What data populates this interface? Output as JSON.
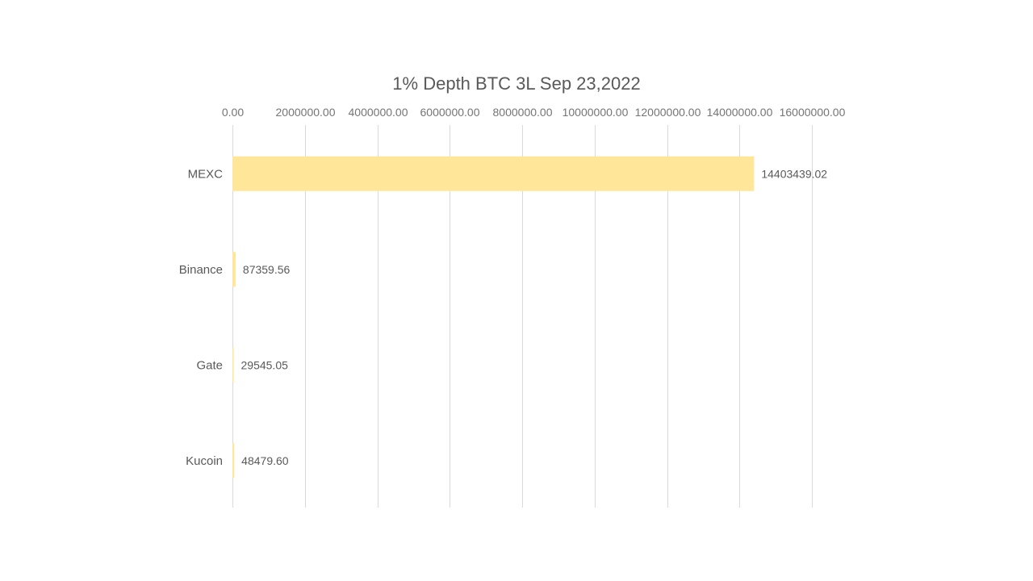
{
  "chart_data": {
    "type": "bar",
    "orientation": "horizontal",
    "title": "1% Depth BTC 3L Sep 23,2022",
    "xlabel": "",
    "ylabel": "",
    "categories": [
      "MEXC",
      "Binance",
      "Gate",
      "Kucoin"
    ],
    "values": [
      14403439.02,
      87359.56,
      29545.05,
      48479.6
    ],
    "value_labels": [
      "14403439.02",
      "87359.56",
      "29545.05",
      "48479.60"
    ],
    "xlim": [
      0,
      16000000
    ],
    "ticks": [
      0,
      2000000,
      4000000,
      6000000,
      8000000,
      10000000,
      12000000,
      14000000,
      16000000
    ],
    "tick_labels": [
      "0.00",
      "2000000.00",
      "4000000.00",
      "6000000.00",
      "8000000.00",
      "10000000.00",
      "12000000.00",
      "14000000.00",
      "16000000.00"
    ],
    "axis_position": "top",
    "grid": true,
    "legend": "none",
    "colors": {
      "bar": "#ffe699",
      "grid": "#d9d9d9",
      "text": "#595959"
    }
  }
}
